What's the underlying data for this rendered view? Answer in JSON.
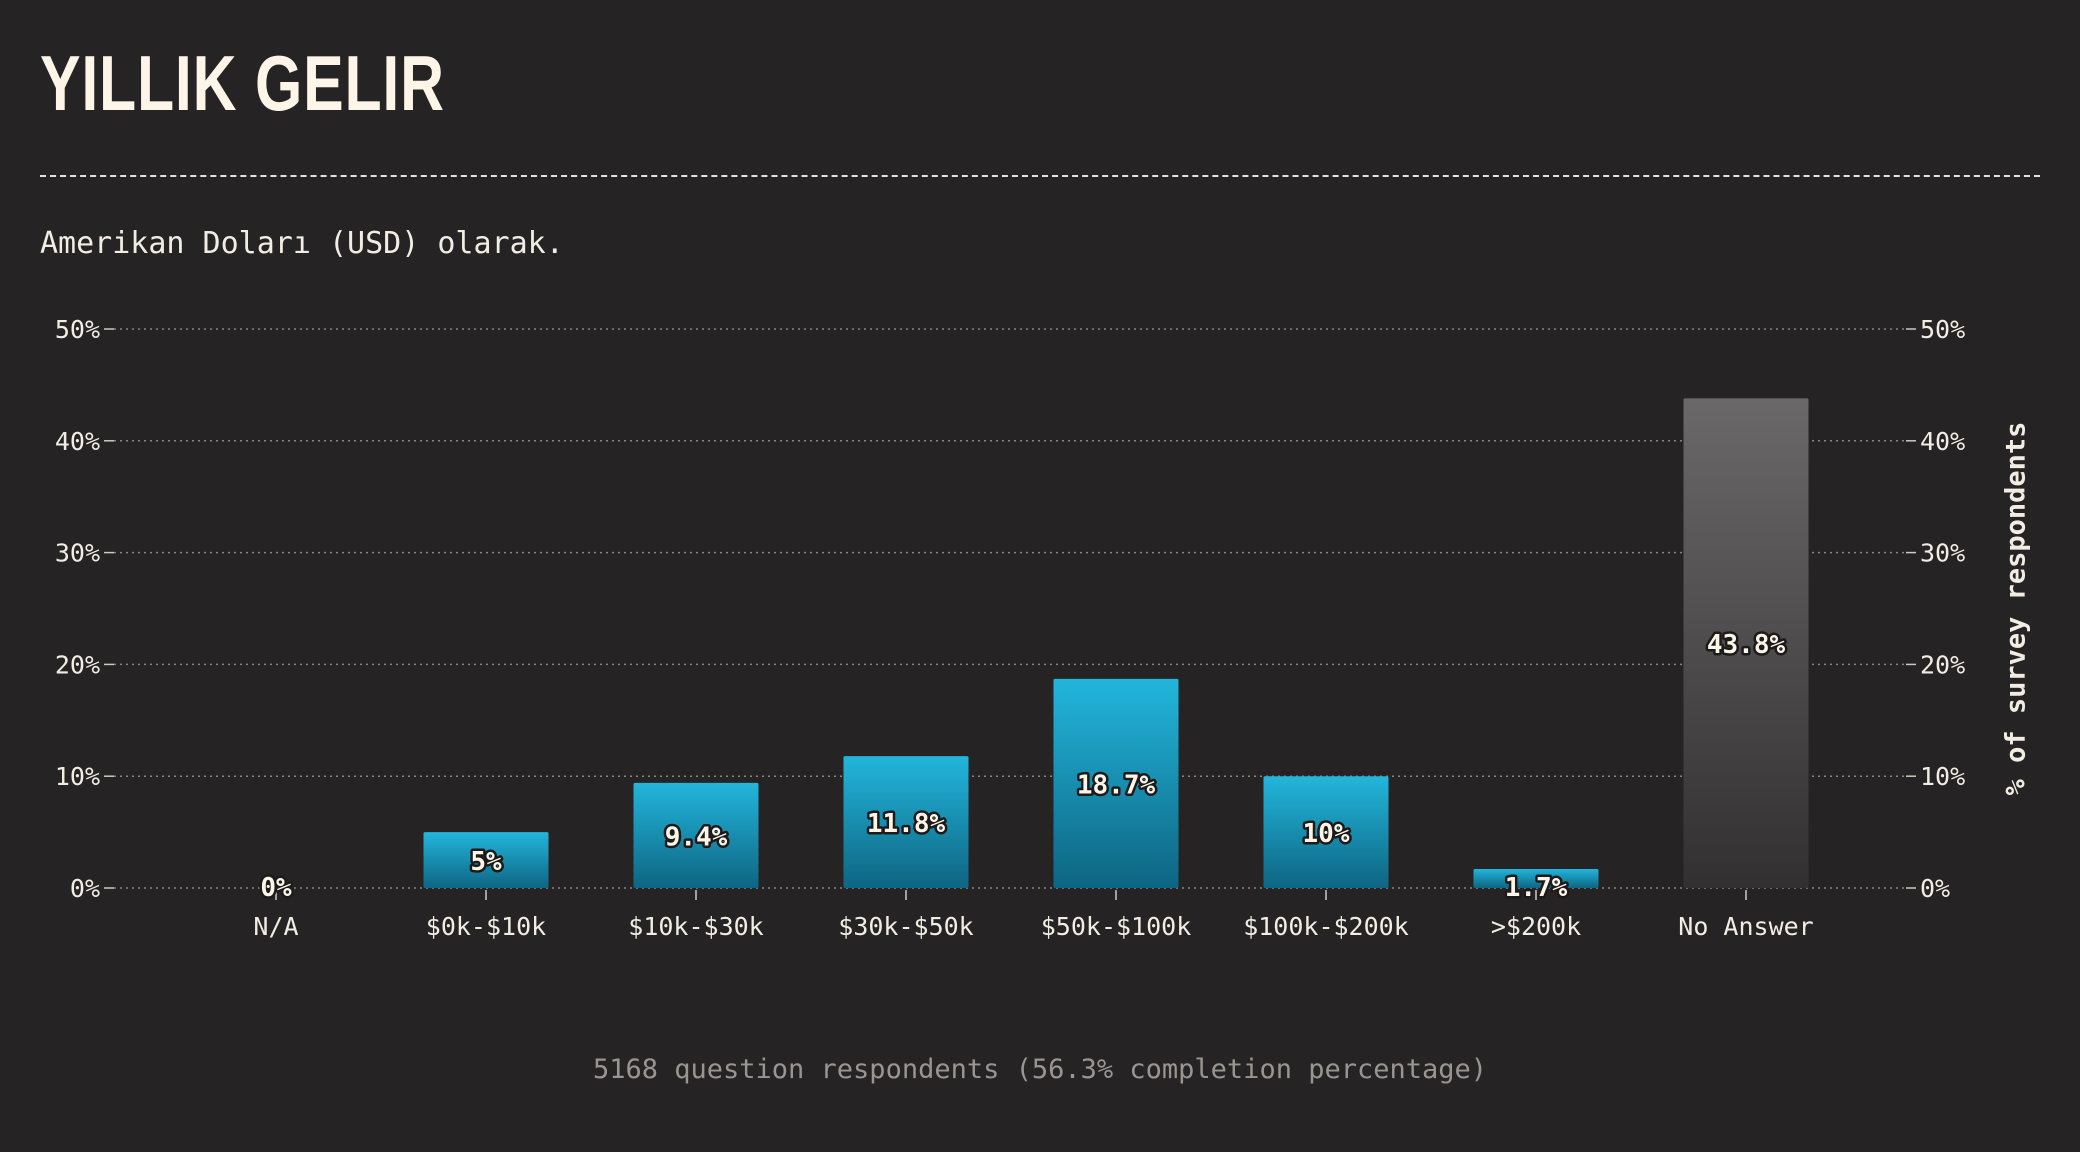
{
  "header": {
    "title": "YILLIK GELIR",
    "subtitle": "Amerikan Doları (USD) olarak."
  },
  "footer": {
    "note": "5168 question respondents (56.3% completion percentage)"
  },
  "colors": {
    "background": "#262324",
    "bar_top": "#22b6dc",
    "bar_bottom": "#0e6582",
    "no_answer_top": "#6a6868",
    "no_answer_bottom": "#333031"
  },
  "chart_data": {
    "type": "bar",
    "categories": [
      "N/A",
      "$0k-$10k",
      "$10k-$30k",
      "$30k-$50k",
      "$50k-$100k",
      "$100k-$200k",
      ">$200k",
      "No Answer"
    ],
    "values": [
      0,
      5,
      9.4,
      11.8,
      18.7,
      10,
      1.7,
      43.8
    ],
    "value_labels": [
      "0%",
      "5%",
      "9.4%",
      "11.8%",
      "18.7%",
      "10%",
      "1.7%",
      "43.8%"
    ],
    "ylim": [
      0,
      50
    ],
    "yticks": [
      0,
      10,
      20,
      30,
      40,
      50
    ],
    "ytick_labels": [
      "0%",
      "10%",
      "20%",
      "30%",
      "40%",
      "50%"
    ],
    "ylabel_right": "% of survey respondents",
    "grid": true,
    "legend": "none"
  }
}
